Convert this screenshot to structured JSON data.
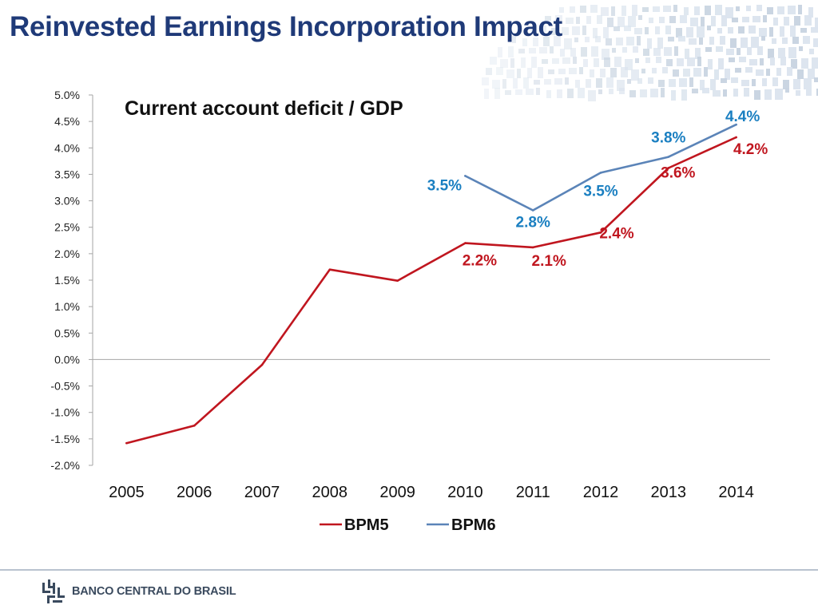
{
  "slide": {
    "title": "Reinvested Earnings Incorporation Impact"
  },
  "footer": {
    "logo_text": "BANCO CENTRAL DO BRASIL",
    "logo_icon": "banco-central-logo-icon"
  },
  "colors": {
    "title": "#1f3a78",
    "bpm5": "#c0161f",
    "bpm6": "#5b84b8",
    "bpm6_label": "#1a7fc1"
  },
  "chart_data": {
    "type": "line",
    "title": "Current account deficit / GDP",
    "xlabel": "",
    "ylabel": "",
    "categories": [
      "2005",
      "2006",
      "2007",
      "2008",
      "2009",
      "2010",
      "2011",
      "2012",
      "2013",
      "2014"
    ],
    "y_ticks": [
      "5.0%",
      "4.5%",
      "4.0%",
      "3.5%",
      "3.0%",
      "2.5%",
      "2.0%",
      "1.5%",
      "1.0%",
      "0.5%",
      "0.0%",
      "-0.5%",
      "-1.0%",
      "-1.5%",
      "-2.0%"
    ],
    "ylim": [
      -2.0,
      5.0
    ],
    "grid": false,
    "legend_position": "bottom",
    "series": [
      {
        "name": "BPM5",
        "values": [
          -1.58,
          -1.25,
          -0.1,
          1.7,
          1.49,
          2.2,
          2.12,
          2.4,
          3.62,
          4.2
        ],
        "data_labels": [
          null,
          null,
          null,
          null,
          null,
          "2.2%",
          "2.1%",
          "2.4%",
          "3.6%",
          "4.2%"
        ]
      },
      {
        "name": "BPM6",
        "values": [
          null,
          null,
          null,
          null,
          null,
          3.47,
          2.82,
          3.53,
          3.83,
          4.44
        ],
        "data_labels": [
          null,
          null,
          null,
          null,
          null,
          "3.5%",
          "2.8%",
          "3.5%",
          "3.8%",
          "4.4%"
        ]
      }
    ]
  }
}
